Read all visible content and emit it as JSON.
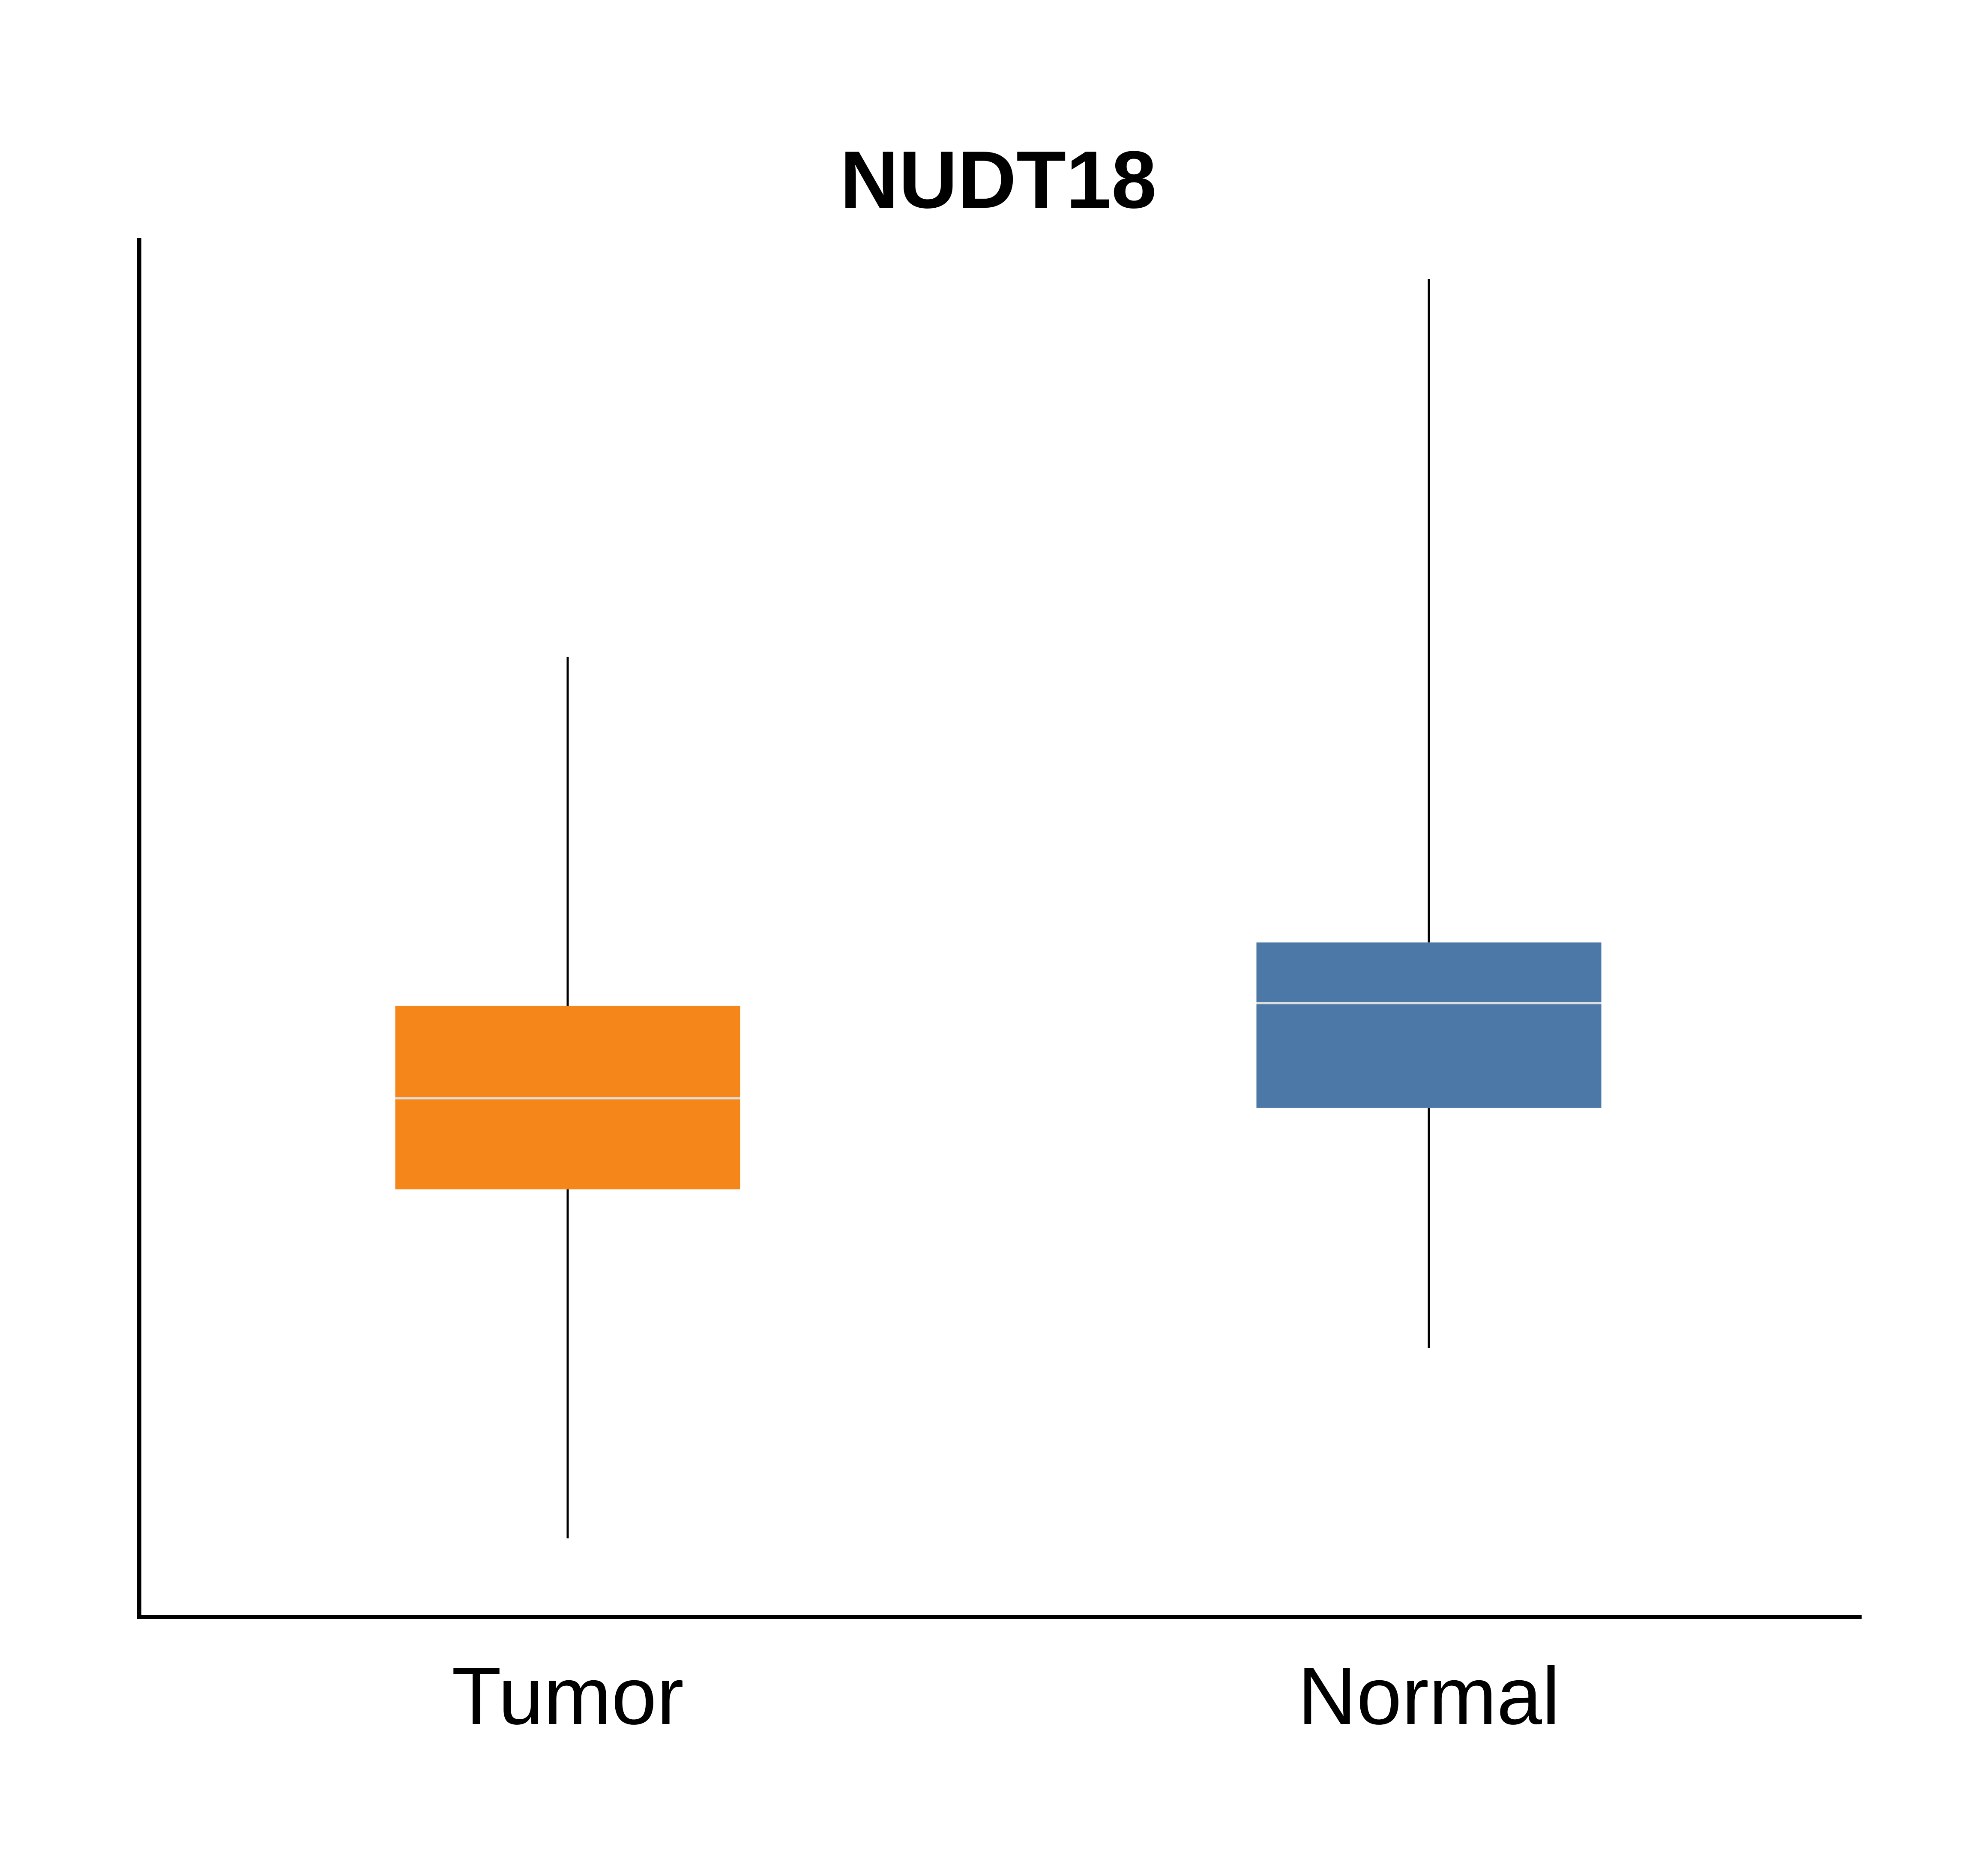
{
  "chart_data": {
    "type": "box",
    "title": "NUDT18",
    "xlabel": "",
    "ylabel": "",
    "ylim": [
      0,
      100
    ],
    "grid": false,
    "categories": [
      "Tumor",
      "Normal"
    ],
    "series": [
      {
        "category": "Tumor",
        "color": "#F5871A",
        "min": 5.7,
        "q1": 31.0,
        "median": 37.6,
        "q3": 44.3,
        "max": 69.6
      },
      {
        "category": "Normal",
        "color": "#4C78A8",
        "min": 19.5,
        "q1": 36.9,
        "median": 44.5,
        "q3": 48.9,
        "max": 97.0
      }
    ],
    "median_color": "#DDDDDD"
  }
}
